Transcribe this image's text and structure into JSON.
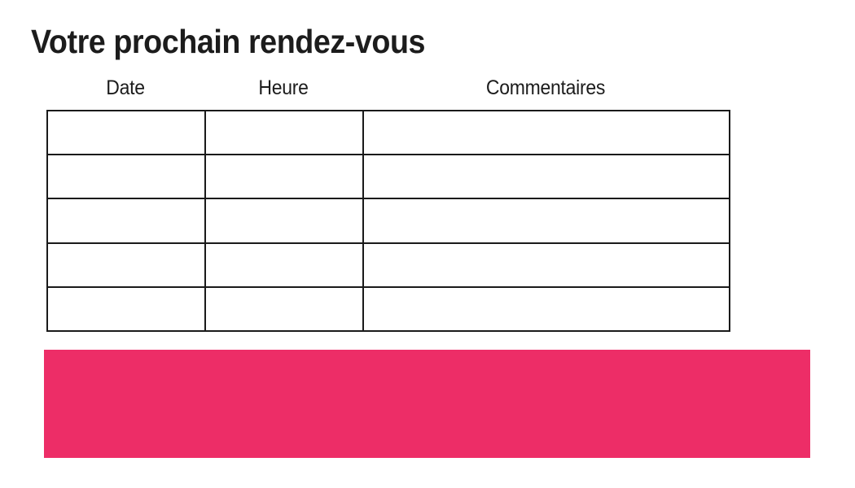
{
  "page": {
    "title": "Votre prochain rendez-vous"
  },
  "table": {
    "headers": [
      "Date",
      "Heure",
      "Commentaires"
    ],
    "rows": [
      [
        "",
        "",
        ""
      ],
      [
        "",
        "",
        ""
      ],
      [
        "",
        "",
        ""
      ],
      [
        "",
        "",
        ""
      ],
      [
        "",
        "",
        ""
      ]
    ]
  },
  "colors": {
    "accent_pink": "#ED2D67",
    "text": "#1C1C1C",
    "border": "#1A1A1A"
  }
}
